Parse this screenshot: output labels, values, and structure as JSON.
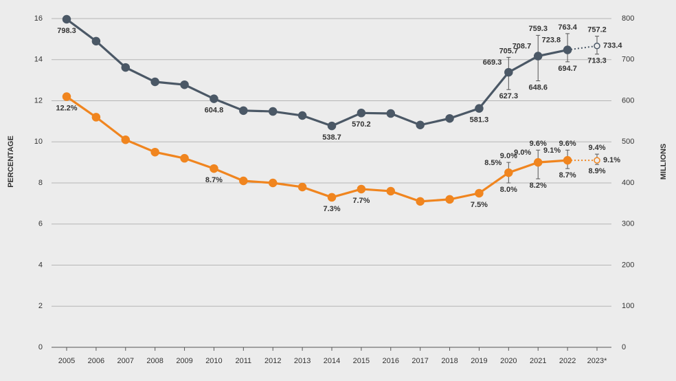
{
  "chart_data": {
    "type": "line",
    "categories": [
      "2005",
      "2006",
      "2007",
      "2008",
      "2009",
      "2010",
      "2011",
      "2012",
      "2013",
      "2014",
      "2015",
      "2016",
      "2017",
      "2018",
      "2019",
      "2020",
      "2021",
      "2022",
      "2023*"
    ],
    "ylabel": "PERCENTAGE",
    "y2label": "MILLIONS",
    "ylim": [
      0,
      16
    ],
    "yticks": [
      0,
      2,
      4,
      6,
      8,
      10,
      12,
      14,
      16
    ],
    "y2lim": [
      0,
      800
    ],
    "y2ticks": [
      0,
      100,
      200,
      300,
      400,
      500,
      600,
      700,
      800
    ],
    "grid": true,
    "dashed_last_segment": true,
    "series": [
      {
        "name": "Millions",
        "color": "#4b5866",
        "axis": "y2",
        "values": [
          798.3,
          745,
          681,
          646,
          639,
          604.8,
          576,
          574,
          564,
          538.7,
          570.2,
          569,
          541,
          557,
          581.3,
          669.3,
          708.7,
          723.8,
          733.4
        ],
        "value_labels": [
          "798.3",
          null,
          null,
          null,
          null,
          "604.8",
          null,
          null,
          null,
          "538.7",
          "570.2",
          null,
          null,
          null,
          "581.3",
          "669.3",
          "708.7",
          "723.8",
          "733.4"
        ],
        "upper": [
          null,
          null,
          null,
          null,
          null,
          null,
          null,
          null,
          null,
          null,
          null,
          null,
          null,
          null,
          null,
          705.7,
          759.3,
          763.4,
          757.2
        ],
        "lower": [
          null,
          null,
          null,
          null,
          null,
          null,
          null,
          null,
          null,
          null,
          null,
          null,
          null,
          null,
          null,
          627.3,
          648.6,
          694.7,
          713.3
        ],
        "upper_labels": [
          null,
          null,
          null,
          null,
          null,
          null,
          null,
          null,
          null,
          null,
          null,
          null,
          null,
          null,
          null,
          "705.7",
          "759.3",
          "763.4",
          "757.2"
        ],
        "lower_labels": [
          null,
          null,
          null,
          null,
          null,
          null,
          null,
          null,
          null,
          null,
          null,
          null,
          null,
          null,
          null,
          "627.3",
          "648.6",
          "694.7",
          "713.3"
        ]
      },
      {
        "name": "Percentage",
        "color": "#f0851f",
        "axis": "y",
        "values": [
          12.2,
          11.2,
          10.1,
          9.5,
          9.2,
          8.7,
          8.1,
          8.0,
          7.8,
          7.3,
          7.7,
          7.6,
          7.1,
          7.2,
          7.5,
          8.5,
          9.0,
          9.1,
          9.1
        ],
        "value_labels": [
          "12.2%",
          null,
          null,
          null,
          null,
          "8.7%",
          null,
          null,
          null,
          "7.3%",
          "7.7%",
          null,
          null,
          null,
          "7.5%",
          "8.5%",
          "9.0%",
          "9.1%",
          "9.1%"
        ],
        "upper": [
          null,
          null,
          null,
          null,
          null,
          null,
          null,
          null,
          null,
          null,
          null,
          null,
          null,
          null,
          null,
          9.0,
          9.6,
          9.6,
          9.4
        ],
        "lower": [
          null,
          null,
          null,
          null,
          null,
          null,
          null,
          null,
          null,
          null,
          null,
          null,
          null,
          null,
          null,
          8.0,
          8.2,
          8.7,
          8.9
        ],
        "upper_labels": [
          null,
          null,
          null,
          null,
          null,
          null,
          null,
          null,
          null,
          null,
          null,
          null,
          null,
          null,
          null,
          "9.0%",
          "9.6%",
          "9.6%",
          "9.4%"
        ],
        "lower_labels": [
          null,
          null,
          null,
          null,
          null,
          null,
          null,
          null,
          null,
          null,
          null,
          null,
          null,
          null,
          null,
          "8.0%",
          "8.2%",
          "8.7%",
          "8.9%"
        ]
      }
    ]
  }
}
